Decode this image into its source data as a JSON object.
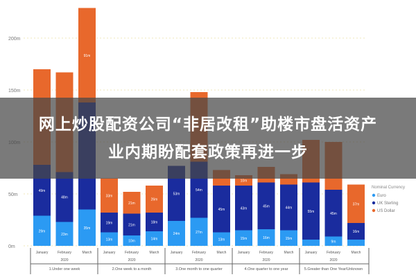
{
  "headline": {
    "line1": "网上炒股配资公司“非居改租”助楼市盘活资产",
    "line2": "业内期盼配套政策再进一步"
  },
  "chart_data": {
    "type": "bar",
    "stacked": true,
    "title": "",
    "xlabel": "",
    "ylabel": "",
    "ylim": [
      0,
      230
    ],
    "yticks": [
      0,
      50,
      100,
      150,
      200
    ],
    "ytick_labels": [
      "0m",
      "50m",
      "100m",
      "150m",
      "200m"
    ],
    "grid": "horizontal dotted",
    "legend": {
      "title": "Nominal Currency",
      "placement": "right"
    },
    "groups": [
      {
        "label": "1.Under one week",
        "year": "2020",
        "months": [
          "January",
          "February",
          "March"
        ]
      },
      {
        "label": "2.One week to a month",
        "year": "2020",
        "months": [
          "January",
          "February",
          "March"
        ]
      },
      {
        "label": "3.One month to one quarter",
        "year": "2020",
        "months": [
          "January",
          "February",
          "March"
        ]
      },
      {
        "label": "4.One quarter to one year",
        "year": "2020",
        "months": [
          "January",
          "February",
          "March"
        ]
      },
      {
        "label": "5.Greater than One Year/Unknown",
        "year": "2020",
        "months": [
          "January",
          "February",
          "March"
        ]
      }
    ],
    "series": [
      {
        "name": "Euro",
        "color": "#2b9af3",
        "values": [
          29,
          23,
          35,
          13,
          10,
          14,
          24,
          27,
          13,
          15,
          16,
          15,
          6,
          9,
          6
        ]
      },
      {
        "name": "UK Sterling",
        "color": "#1a2c9e",
        "values": [
          49,
          48,
          103,
          19,
          21,
          18,
          53,
          54,
          45,
          43,
          45,
          44,
          55,
          45,
          16
        ]
      },
      {
        "name": "US Dollar",
        "color": "#e8682c",
        "values": [
          92,
          96,
          91,
          33,
          21,
          26,
          0,
          67,
          15,
          10,
          15,
          10,
          41,
          46,
          37
        ]
      }
    ]
  }
}
